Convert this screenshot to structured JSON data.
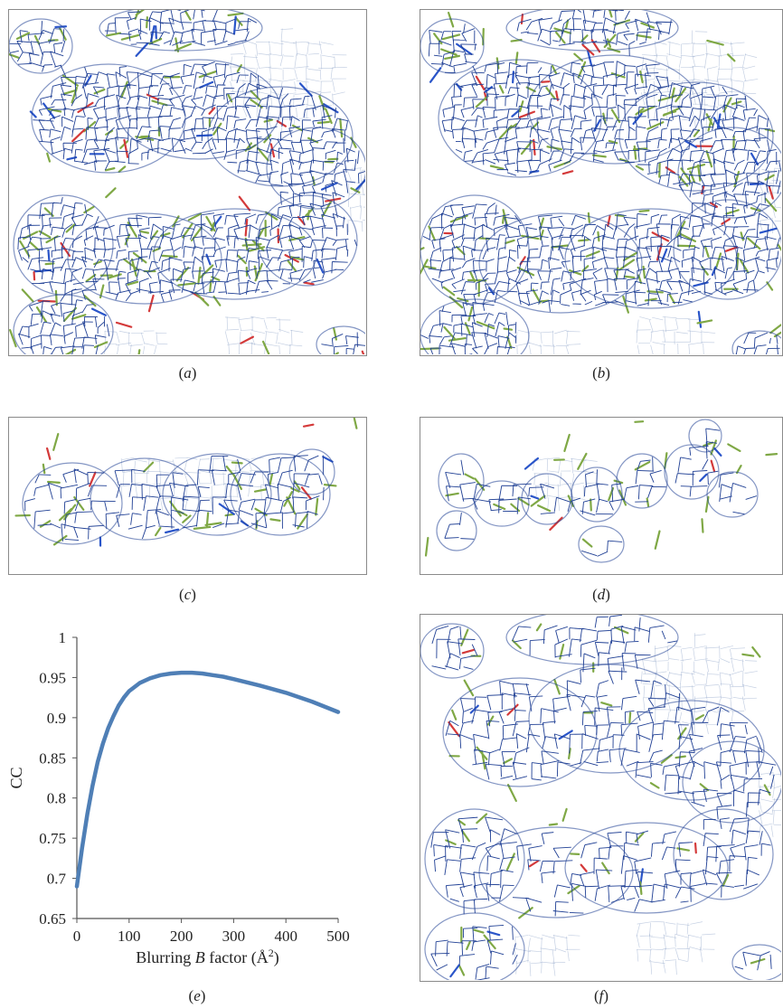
{
  "figure": {
    "panel_letters": [
      "a",
      "b",
      "c",
      "d",
      "e",
      "f"
    ],
    "mesh_color": "#1f3f94",
    "stick_color": "#7fa845",
    "oxygen_color": "#d43a3a",
    "nitrogen_color": "#2a55c9"
  },
  "chart_data": {
    "type": "line",
    "x": [
      0,
      10,
      20,
      30,
      40,
      50,
      60,
      70,
      80,
      90,
      100,
      120,
      140,
      160,
      180,
      200,
      220,
      240,
      260,
      280,
      300,
      350,
      400,
      450,
      500
    ],
    "series": [
      {
        "values": [
          0.69,
          0.738,
          0.78,
          0.815,
          0.845,
          0.868,
          0.887,
          0.902,
          0.915,
          0.925,
          0.933,
          0.943,
          0.949,
          0.953,
          0.955,
          0.956,
          0.956,
          0.955,
          0.953,
          0.951,
          0.948,
          0.94,
          0.931,
          0.92,
          0.907
        ],
        "color": "#4f7fb6"
      }
    ],
    "ylabel": "CC",
    "xlabel_parts": {
      "before": "Blurring ",
      "italic": "B",
      "after": " factor (Å",
      "sup": "2",
      "close": ")"
    },
    "xlim": [
      0,
      500
    ],
    "ylim": [
      0.65,
      1
    ],
    "x_ticks": [
      "0",
      "100",
      "200",
      "300",
      "400",
      "500"
    ],
    "y_ticks": [
      "0.65",
      "0.7",
      "0.75",
      "0.8",
      "0.85",
      "0.9",
      "0.95",
      "1"
    ],
    "grid": false
  }
}
